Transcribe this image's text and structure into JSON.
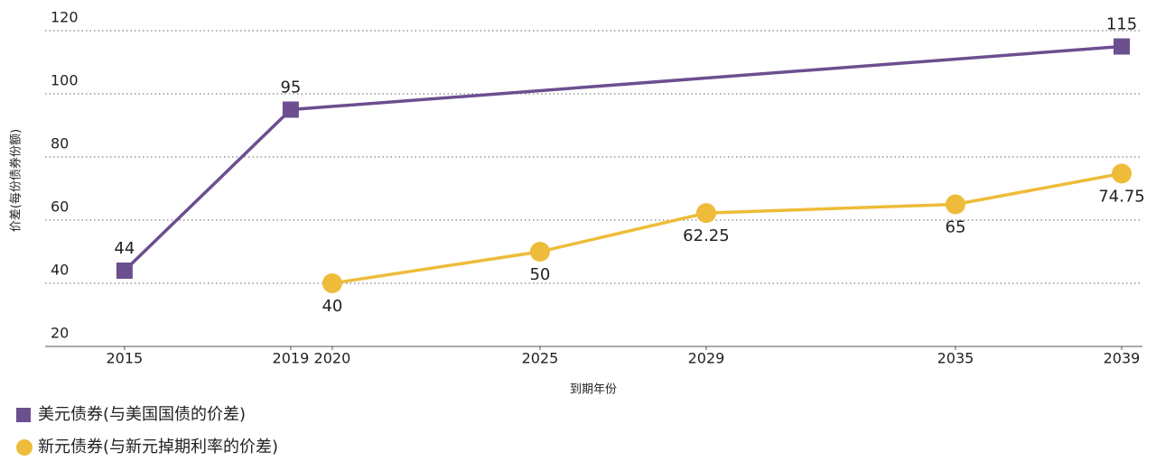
{
  "chart_data": {
    "type": "line",
    "y_label": "价差(每份债券份额)",
    "x_label": "到期年份",
    "xlim": [
      2013.09,
      2039.5
    ],
    "xticks": [
      2015,
      2019,
      2020,
      2025,
      2029,
      2035,
      2039
    ],
    "ylim": [
      20,
      124
    ],
    "yticks": [
      20,
      40,
      60,
      80,
      100,
      120
    ],
    "grid": true,
    "legend": "bottom-left",
    "series": [
      {
        "name": "美元债券(与美国国债的价差)",
        "color": "#6b4f8f",
        "marker": "square",
        "x": [
          2015,
          2019,
          2039
        ],
        "values": [
          44,
          95,
          115
        ]
      },
      {
        "name": "新元债券(与新元掉期利率的价差)",
        "color": "#eebc3a",
        "marker": "circle",
        "x": [
          2020,
          2025,
          2029,
          2035,
          2039
        ],
        "values": [
          40,
          50,
          62.25,
          65,
          74.75
        ]
      }
    ]
  }
}
